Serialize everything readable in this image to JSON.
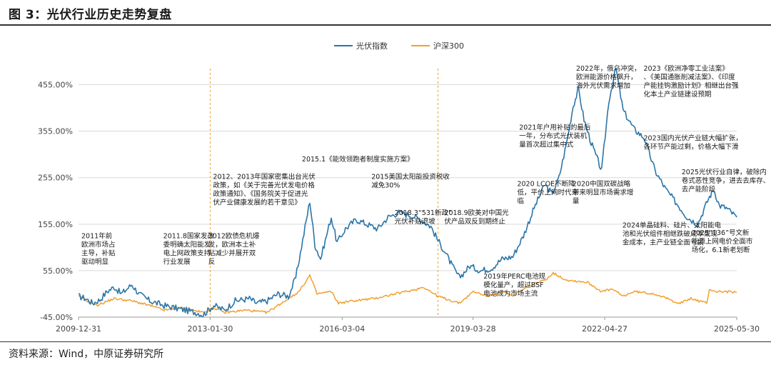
{
  "page": {
    "title": "图 3：光伏行业历史走势复盘",
    "source": "资料来源：Wind，中原证券研究所"
  },
  "colors": {
    "pv": "#2b75a8",
    "hs300": "#f0a030",
    "vline": "#f0a030",
    "grid": "#d9d9d9"
  },
  "chart_data": {
    "type": "line",
    "title": "",
    "xlabel": "",
    "ylabel": "",
    "x_tick_labels": [
      "2009-12-31",
      "2013-01-30",
      "2016-03-04",
      "2019-03-28",
      "2022-04-27",
      "2025-05-30"
    ],
    "x_range": [
      "2009-12-31",
      "2025-05-30"
    ],
    "y_tick_labels": [
      "-45.00%",
      "55.00%",
      "155.00%",
      "255.00%",
      "355.00%",
      "455.00%"
    ],
    "ylim": [
      -45,
      505
    ],
    "legend": {
      "position": "top-center",
      "entries": [
        "光伏指数",
        "沪深300"
      ]
    },
    "vertical_markers": [
      "2013-01-30",
      "2018-06-01"
    ],
    "series": [
      {
        "name": "光伏指数",
        "color": "#2b75a8",
        "points": [
          [
            "2009-12-31",
            0
          ],
          [
            "2010-03-01",
            -5
          ],
          [
            "2010-05-01",
            -15
          ],
          [
            "2010-07-01",
            -8
          ],
          [
            "2010-09-01",
            10
          ],
          [
            "2010-11-01",
            20
          ],
          [
            "2011-01-01",
            5
          ],
          [
            "2011-04-01",
            25
          ],
          [
            "2011-06-01",
            5
          ],
          [
            "2011-09-01",
            -10
          ],
          [
            "2012-01-01",
            -20
          ],
          [
            "2012-04-01",
            -25
          ],
          [
            "2012-07-01",
            -30
          ],
          [
            "2012-10-01",
            -35
          ],
          [
            "2012-12-01",
            -40
          ],
          [
            "2013-03-01",
            -20
          ],
          [
            "2013-06-01",
            -30
          ],
          [
            "2013-09-01",
            -10
          ],
          [
            "2014-01-01",
            -5
          ],
          [
            "2014-03-01",
            -15
          ],
          [
            "2014-06-01",
            -10
          ],
          [
            "2014-09-01",
            5
          ],
          [
            "2014-12-01",
            0
          ],
          [
            "2015-02-01",
            40
          ],
          [
            "2015-04-01",
            120
          ],
          [
            "2015-06-01",
            205
          ],
          [
            "2015-07-15",
            110
          ],
          [
            "2015-09-01",
            80
          ],
          [
            "2015-12-01",
            170
          ],
          [
            "2016-01-20",
            115
          ],
          [
            "2016-04-01",
            145
          ],
          [
            "2016-07-01",
            165
          ],
          [
            "2016-10-01",
            155
          ],
          [
            "2017-01-01",
            145
          ],
          [
            "2017-04-01",
            170
          ],
          [
            "2017-07-01",
            180
          ],
          [
            "2017-10-01",
            175
          ],
          [
            "2018-01-01",
            165
          ],
          [
            "2018-04-01",
            150
          ],
          [
            "2018-06-01",
            120
          ],
          [
            "2018-08-01",
            95
          ],
          [
            "2018-10-01",
            65
          ],
          [
            "2018-12-01",
            40
          ],
          [
            "2019-03-01",
            65
          ],
          [
            "2019-06-01",
            55
          ],
          [
            "2019-09-01",
            60
          ],
          [
            "2019-12-01",
            80
          ],
          [
            "2020-03-01",
            85
          ],
          [
            "2020-06-01",
            130
          ],
          [
            "2020-09-01",
            190
          ],
          [
            "2020-12-01",
            240
          ],
          [
            "2021-02-01",
            220
          ],
          [
            "2021-04-01",
            255
          ],
          [
            "2021-06-01",
            325
          ],
          [
            "2021-08-01",
            410
          ],
          [
            "2021-09-15",
            445
          ],
          [
            "2021-11-01",
            380
          ],
          [
            "2022-01-01",
            330
          ],
          [
            "2022-04-01",
            270
          ],
          [
            "2022-06-01",
            420
          ],
          [
            "2022-08-01",
            490
          ],
          [
            "2022-10-01",
            400
          ],
          [
            "2023-01-01",
            360
          ],
          [
            "2023-04-01",
            340
          ],
          [
            "2023-07-01",
            270
          ],
          [
            "2023-10-01",
            230
          ],
          [
            "2024-01-01",
            200
          ],
          [
            "2024-04-01",
            170
          ],
          [
            "2024-07-01",
            155
          ],
          [
            "2024-10-01",
            210
          ],
          [
            "2024-11-15",
            230
          ],
          [
            "2025-01-01",
            195
          ],
          [
            "2025-03-01",
            190
          ],
          [
            "2025-05-30",
            170
          ]
        ]
      },
      {
        "name": "沪深300",
        "color": "#f0a030",
        "points": [
          [
            "2009-12-31",
            0
          ],
          [
            "2010-06-01",
            -20
          ],
          [
            "2010-11-01",
            -5
          ],
          [
            "2011-04-01",
            -10
          ],
          [
            "2011-09-01",
            -20
          ],
          [
            "2012-01-01",
            -30
          ],
          [
            "2012-06-01",
            -25
          ],
          [
            "2012-12-01",
            -35
          ],
          [
            "2013-03-01",
            -25
          ],
          [
            "2013-06-01",
            -35
          ],
          [
            "2013-12-01",
            -30
          ],
          [
            "2014-06-01",
            -35
          ],
          [
            "2014-12-01",
            -5
          ],
          [
            "2015-03-01",
            10
          ],
          [
            "2015-06-01",
            45
          ],
          [
            "2015-08-01",
            5
          ],
          [
            "2015-12-01",
            10
          ],
          [
            "2016-02-01",
            -15
          ],
          [
            "2016-06-01",
            -10
          ],
          [
            "2016-12-01",
            -5
          ],
          [
            "2017-06-01",
            5
          ],
          [
            "2017-12-01",
            15
          ],
          [
            "2018-01-25",
            20
          ],
          [
            "2018-06-01",
            0
          ],
          [
            "2018-12-01",
            -15
          ],
          [
            "2019-04-01",
            10
          ],
          [
            "2019-08-01",
            0
          ],
          [
            "2019-12-01",
            10
          ],
          [
            "2020-03-01",
            0
          ],
          [
            "2020-07-01",
            20
          ],
          [
            "2020-12-01",
            35
          ],
          [
            "2021-02-10",
            50
          ],
          [
            "2021-06-01",
            35
          ],
          [
            "2021-12-01",
            30
          ],
          [
            "2022-04-01",
            10
          ],
          [
            "2022-07-01",
            15
          ],
          [
            "2022-10-01",
            0
          ],
          [
            "2023-01-01",
            10
          ],
          [
            "2023-07-01",
            5
          ],
          [
            "2023-12-01",
            -10
          ],
          [
            "2024-02-01",
            -15
          ],
          [
            "2024-05-01",
            -5
          ],
          [
            "2024-09-15",
            -15
          ],
          [
            "2024-10-08",
            15
          ],
          [
            "2024-12-01",
            10
          ],
          [
            "2025-03-01",
            10
          ],
          [
            "2025-05-30",
            8
          ]
        ]
      }
    ],
    "annotations": [
      {
        "date": "2009-12-31",
        "y": 125,
        "lines": [
          "2011年前",
          "欧洲市场占",
          "主导，补贴",
          "驱动明显"
        ]
      },
      {
        "date": "2011-12-01",
        "y": 125,
        "lines": [
          "2011.8国家发改",
          "委明确太阳能发",
          "电上网政策支持",
          "行业发展"
        ]
      },
      {
        "date": "2012-12-20",
        "y": 125,
        "lines": [
          "2012欧债危机爆",
          "发，欧洲本土补",
          "贴减少并展开双",
          "反"
        ]
      },
      {
        "date": "2013-01-30",
        "y": 252,
        "lines": [
          "2012、2013年国家密集出台光伏",
          "政策，如《关于完善光伏发电价格",
          "政策通知》、《国务院关于促进光",
          "伏产业健康发展的若干意见》"
        ]
      },
      {
        "date": "2015-03-01",
        "y": 290,
        "lines": [
          "2015.1《能效领跑者制度实施方案》"
        ]
      },
      {
        "date": "2016-10-15",
        "y": 252,
        "lines": [
          "2015美国太阳能投资税收",
          "减免30%"
        ]
      },
      {
        "date": "2017-05-01",
        "y": 175,
        "lines": [
          "2018.3“531新政”",
          "光伏补贴退坡"
        ]
      },
      {
        "date": "2018-07-01",
        "y": 175,
        "lines": [
          "2018.9欧美对中国光",
          "伏产品双反到期终止"
        ]
      },
      {
        "date": "2019-06-01",
        "y": 38,
        "lines": [
          "2019年PERC电池规",
          "模化量产，超过BSF",
          "电池成为市场主流"
        ]
      },
      {
        "date": "2020-03-15",
        "y": 237,
        "lines": [
          "2020 LCOE不断降",
          "低，平价上网时代来",
          "临"
        ]
      },
      {
        "date": "2020-04-01",
        "y": 358,
        "lines": [
          "2021年户用补贴的最后",
          "一年，分布式光伏装机",
          "量首次超过集中式"
        ]
      },
      {
        "date": "2021-07-01",
        "y": 237,
        "lines": [
          "2020中国双碳战略",
          "带来明显市场需求增",
          "量"
        ]
      },
      {
        "date": "2021-08-01",
        "y": 485,
        "lines": [
          "2022年，俄乌冲突，",
          "欧洲能源价格飙升，",
          "海外光伏需求增加"
        ]
      },
      {
        "date": "2023-03-01",
        "y": 485,
        "lines": [
          "2023《欧洲净零工业法案》",
          "、《美国通胀削减法案》、《印度",
          "产能挂钩激励计划》相继出台强",
          "化本土产业链建设预期"
        ]
      },
      {
        "date": "2023-03-01",
        "y": 335,
        "lines": [
          "2023国内光伏产业链大幅扩张，",
          "各环节产能过剩，价格大幅下滑"
        ]
      },
      {
        "date": "2022-09-01",
        "y": 148,
        "lines": [
          "2024单晶硅料、硅片、太阳能电",
          "池和光伏组件相继跌破成本或现",
          "金成本，主产业链全面亏损"
        ]
      },
      {
        "date": "2024-01-20",
        "y": 262,
        "lines": [
          "2025光伏行业自律，破除内",
          "卷式恶性竞争，进去去库存、",
          "去产能阶段"
        ]
      },
      {
        "date": "2024-04-15",
        "y": 132,
        "lines": [
          "2025“136”号文新",
          "能源上网电价全面市",
          "场化，6.1新老划断"
        ]
      }
    ]
  }
}
